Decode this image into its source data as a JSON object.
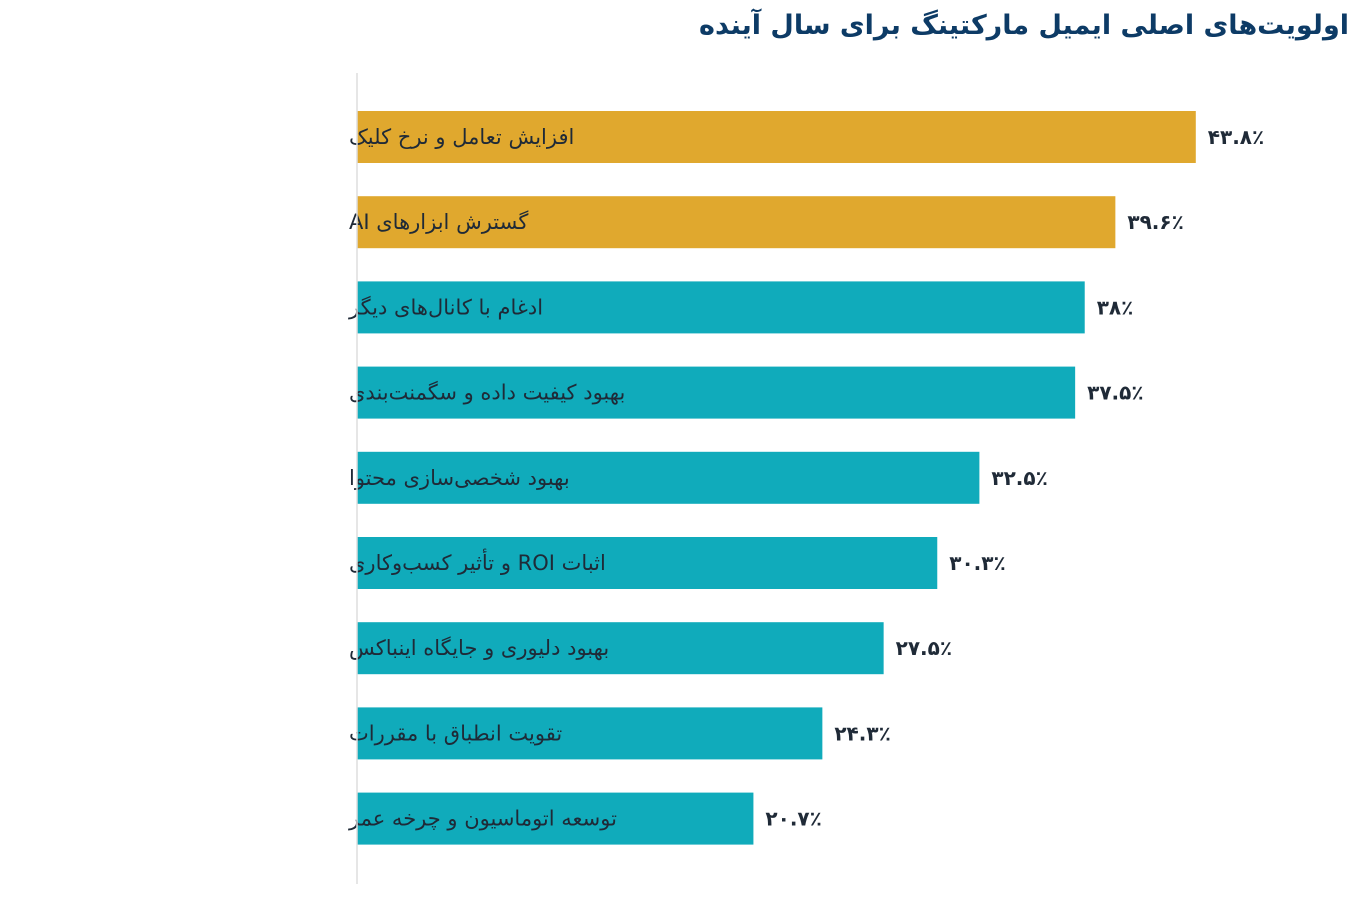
{
  "chart_data": {
    "type": "bar",
    "orientation": "horizontal",
    "title": "اولویت‌های اصلی ایمیل مارکتینگ برای سال آینده",
    "categories": [
      "افزایش تعامل و نرخ کلیک",
      "گسترش ابزارهای AI",
      "ادغام با کانال‌های دیگر",
      "بهبود کیفیت داده و سگمنت‌بندی",
      "بهبود شخصی‌سازی محتوا",
      "اثبات ROI و تأثیر کسب‌وکاری",
      "بهبود دلیوری و جایگاه اینباکس",
      "تقویت انطباق با مقررات",
      "توسعه اتوماسیون و چرخه عمر"
    ],
    "values": [
      43.8,
      39.6,
      38,
      37.5,
      32.5,
      30.3,
      27.5,
      24.3,
      20.7
    ],
    "value_labels": [
      "۴۳.۸٪",
      "۳۹.۶٪",
      "۳۸٪",
      "۳۷.۵٪",
      "۳۲.۵٪",
      "۳۰.۳٪",
      "۲۷.۵٪",
      "۲۴.۳٪",
      "۲۰.۷٪"
    ],
    "highlighted": [
      true,
      true,
      false,
      false,
      false,
      false,
      false,
      false,
      false
    ],
    "xlim": [
      0,
      51.8
    ],
    "grid": false,
    "legend": "none",
    "colors": {
      "highlight": "#e0a82e",
      "default": "#10abbb",
      "axis": "#dddddd",
      "title": "#0d3b66",
      "text": "#1f2a37"
    }
  }
}
